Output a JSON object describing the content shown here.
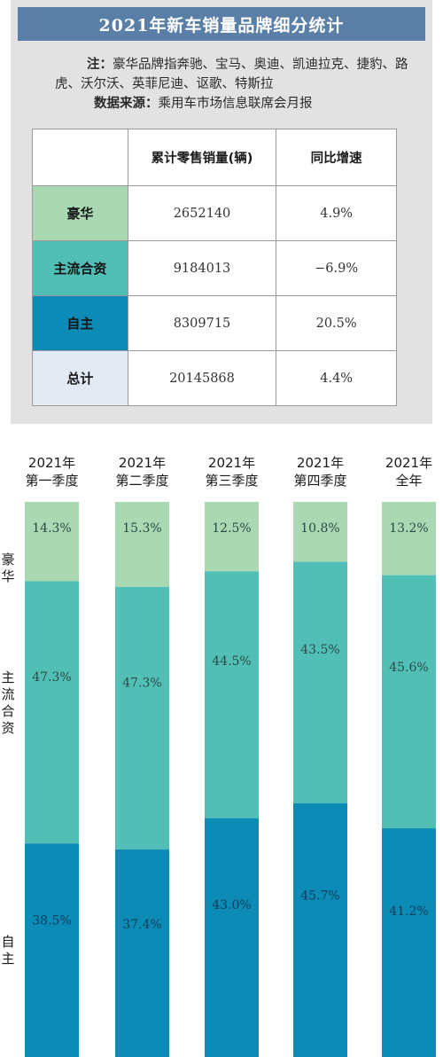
{
  "header": {
    "title": "2021年新车销量品牌细分统计"
  },
  "notes": {
    "note_label": "注：",
    "note_text": "豪华品牌指奔驰、宝马、奥迪、凯迪拉克、捷豹、路虎、沃尔沃、英菲尼迪、讴歌、特斯拉",
    "source_label": "数据来源：",
    "source_text": "乘用车市场信息联席会月报"
  },
  "table": {
    "headers": [
      "",
      "累计零售销量(辆)",
      "同比增速"
    ],
    "rows": [
      {
        "name": "豪华",
        "sales": "2652140",
        "growth": "4.9%",
        "color": "#a9d8b3"
      },
      {
        "name": "主流合资",
        "sales": "9184013",
        "growth": "−6.9%",
        "color": "#52bfb6"
      },
      {
        "name": "自主",
        "sales": "8309715",
        "growth": "20.5%",
        "color": "#0b8bb5"
      },
      {
        "name": "总计",
        "sales": "20145868",
        "growth": "4.4%",
        "color": "#e4eaf4"
      }
    ]
  },
  "chart_data": {
    "type": "bar",
    "stacked": true,
    "unit": "%",
    "categories": [
      "2021年\n第一季度",
      "2021年\n第二季度",
      "2021年\n第三季度",
      "2021年\n第四季度",
      "2021年\n全年"
    ],
    "series": [
      {
        "name": "豪华",
        "label_lines": [
          "豪",
          "华"
        ],
        "values": [
          14.3,
          15.3,
          12.5,
          10.8,
          13.2
        ],
        "labels": [
          "14.3%",
          "15.3%",
          "12.5%",
          "10.8%",
          "13.2%"
        ],
        "color": "#a9d8b3"
      },
      {
        "name": "主流合资",
        "label_lines": [
          "主",
          "流",
          "合",
          "资"
        ],
        "values": [
          47.3,
          47.3,
          44.5,
          43.5,
          45.6
        ],
        "labels": [
          "47.3%",
          "47.3%",
          "44.5%",
          "43.5%",
          "45.6%"
        ],
        "color": "#52bfb6"
      },
      {
        "name": "自主",
        "label_lines": [
          "自",
          "主"
        ],
        "values": [
          38.5,
          37.4,
          43.0,
          45.7,
          41.2
        ],
        "labels": [
          "38.5%",
          "37.4%",
          "43.0%",
          "45.7%",
          "41.2%"
        ],
        "color": "#0b8bb5"
      }
    ]
  }
}
